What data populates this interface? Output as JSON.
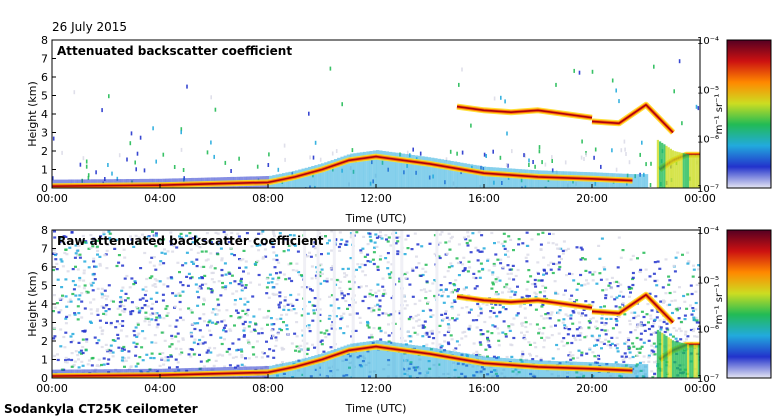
{
  "header": {
    "date": "26 July 2015"
  },
  "footer": {
    "instrument": "Sodankyla CT25K ceilometer"
  },
  "colorbar": {
    "unit": "m⁻¹ sr⁻¹",
    "ticks": [
      "10⁻⁴",
      "10⁻⁵",
      "10⁻⁶",
      "10⁻⁷"
    ],
    "range": [
      1e-07,
      0.0001
    ],
    "colors": [
      "#e6e6f2",
      "#2233cc",
      "#22aadd",
      "#22bb55",
      "#ccdd22",
      "#ff8800",
      "#cc1111",
      "#550022"
    ]
  },
  "chart_data": [
    {
      "type": "heatmap",
      "title": "Attenuated backscatter coefficient",
      "xlabel": "Time (UTC)",
      "ylabel": "Height (km)",
      "x_ticks": [
        "00:00",
        "04:00",
        "08:00",
        "12:00",
        "16:00",
        "20:00",
        "00:00"
      ],
      "y_ticks": [
        "0",
        "1",
        "2",
        "3",
        "4",
        "5",
        "6",
        "7",
        "8"
      ],
      "xlim": [
        0,
        24
      ],
      "ylim": [
        0,
        8
      ],
      "features": [
        {
          "name": "boundary-layer",
          "time_h": [
            0,
            4,
            8,
            9,
            10,
            11,
            12,
            14,
            16,
            18,
            20,
            21.5
          ],
          "height_km": [
            0.1,
            0.15,
            0.3,
            0.6,
            1.0,
            1.5,
            1.7,
            1.3,
            0.8,
            0.6,
            0.5,
            0.4
          ]
        },
        {
          "name": "mid-cloud-a",
          "time_h": [
            15,
            16,
            17,
            18,
            19,
            20
          ],
          "height_km": [
            4.4,
            4.2,
            4.1,
            4.2,
            4.0,
            3.8
          ]
        },
        {
          "name": "mid-cloud-b",
          "time_h": [
            20,
            21,
            22,
            23
          ],
          "height_km": [
            3.6,
            3.5,
            4.5,
            3.0
          ]
        },
        {
          "name": "low-cloud",
          "time_h": [
            22.5,
            23,
            23.5,
            24
          ],
          "height_km": [
            1.0,
            1.5,
            1.8,
            1.8
          ]
        }
      ]
    },
    {
      "type": "heatmap",
      "title": "Raw attenuated backscatter coefficient",
      "xlabel": "Time (UTC)",
      "ylabel": "Height (km)",
      "x_ticks": [
        "00:00",
        "04:00",
        "08:00",
        "12:00",
        "16:00",
        "20:00",
        "00:00"
      ],
      "y_ticks": [
        "0",
        "1",
        "2",
        "3",
        "4",
        "5",
        "6",
        "7",
        "8"
      ],
      "xlim": [
        0,
        24
      ],
      "ylim": [
        0,
        8
      ],
      "features": [
        {
          "name": "boundary-layer",
          "time_h": [
            0,
            4,
            8,
            9,
            10,
            11,
            12,
            14,
            16,
            18,
            20,
            21.5
          ],
          "height_km": [
            0.1,
            0.15,
            0.3,
            0.6,
            1.0,
            1.5,
            1.7,
            1.3,
            0.8,
            0.6,
            0.5,
            0.4
          ]
        },
        {
          "name": "mid-cloud-a",
          "time_h": [
            15,
            16,
            17,
            18,
            19,
            20
          ],
          "height_km": [
            4.4,
            4.2,
            4.1,
            4.2,
            4.0,
            3.8
          ]
        },
        {
          "name": "mid-cloud-b",
          "time_h": [
            20,
            21,
            22,
            23
          ],
          "height_km": [
            3.6,
            3.5,
            4.5,
            3.0
          ]
        },
        {
          "name": "low-cloud",
          "time_h": [
            22.5,
            23,
            23.5,
            24
          ],
          "height_km": [
            1.0,
            1.5,
            1.8,
            1.8
          ]
        }
      ]
    }
  ]
}
